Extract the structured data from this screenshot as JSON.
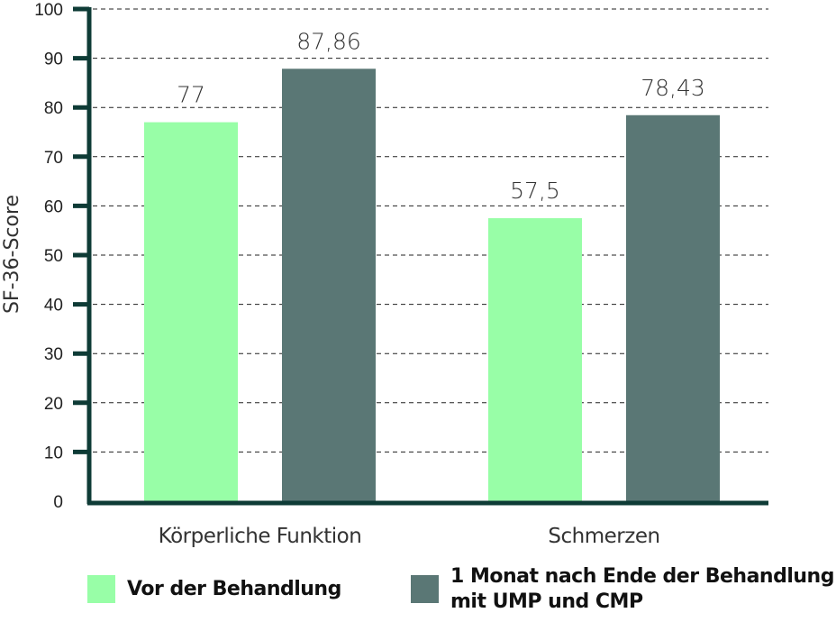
{
  "chart_data": {
    "type": "bar",
    "title": "",
    "xlabel": "",
    "ylabel": "SF-36-Score",
    "ylim": [
      0,
      100
    ],
    "yticks": [
      0,
      10,
      20,
      30,
      40,
      50,
      60,
      70,
      80,
      90,
      100
    ],
    "grid": true,
    "categories": [
      "Körperliche Funktion",
      "Schmerzen"
    ],
    "series": [
      {
        "name": "Vor der Behandlung",
        "values": [
          77,
          57.5
        ],
        "labels": [
          "77",
          "57,5"
        ],
        "color": "#98FEA7"
      },
      {
        "name": "1 Monat nach Ende der Behandlung mit UMP und CMP",
        "values": [
          87.86,
          78.43
        ],
        "labels": [
          "87,86",
          "78,43"
        ],
        "color": "#5A7775"
      }
    ],
    "legend_placement": "bottom",
    "legend": [
      {
        "line1": "Vor der Behandlung",
        "line2": ""
      },
      {
        "line1": "1 Monat nach Ende der Behandlung",
        "line2": "mit UMP und CMP"
      }
    ],
    "axis_color": "#0E3B36"
  }
}
